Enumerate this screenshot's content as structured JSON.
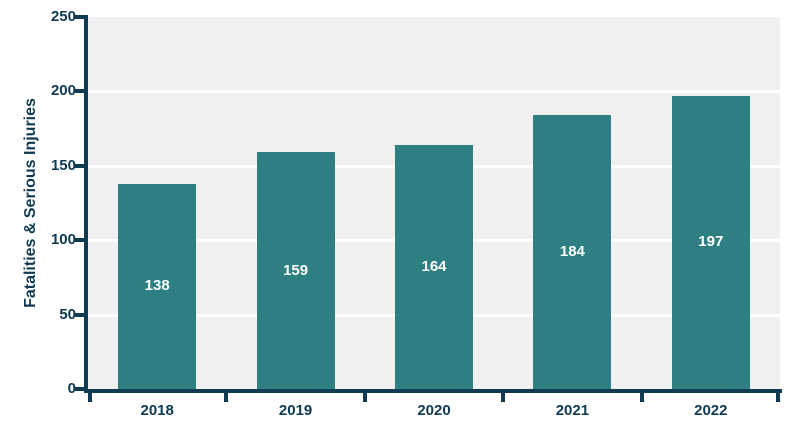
{
  "chart_data": {
    "type": "bar",
    "categories": [
      "2018",
      "2019",
      "2020",
      "2021",
      "2022"
    ],
    "values": [
      138,
      159,
      164,
      184,
      197
    ],
    "title": "",
    "xlabel": "",
    "ylabel": "Fatalities & Serious Injuries",
    "ylim": [
      0,
      250
    ],
    "yticks": [
      0,
      50,
      100,
      150,
      200,
      250
    ],
    "grid": true,
    "legend": false,
    "bar_value_labels_shown": true,
    "bar_value_label_position": "inside-middle"
  },
  "colors": {
    "bar": "#2e7f81",
    "axis": "#0f3a52",
    "plot_background": "#f0f0f0",
    "gridline": "#ffffff",
    "bar_label_text": "#ffffff",
    "page_background": "#ffffff"
  }
}
